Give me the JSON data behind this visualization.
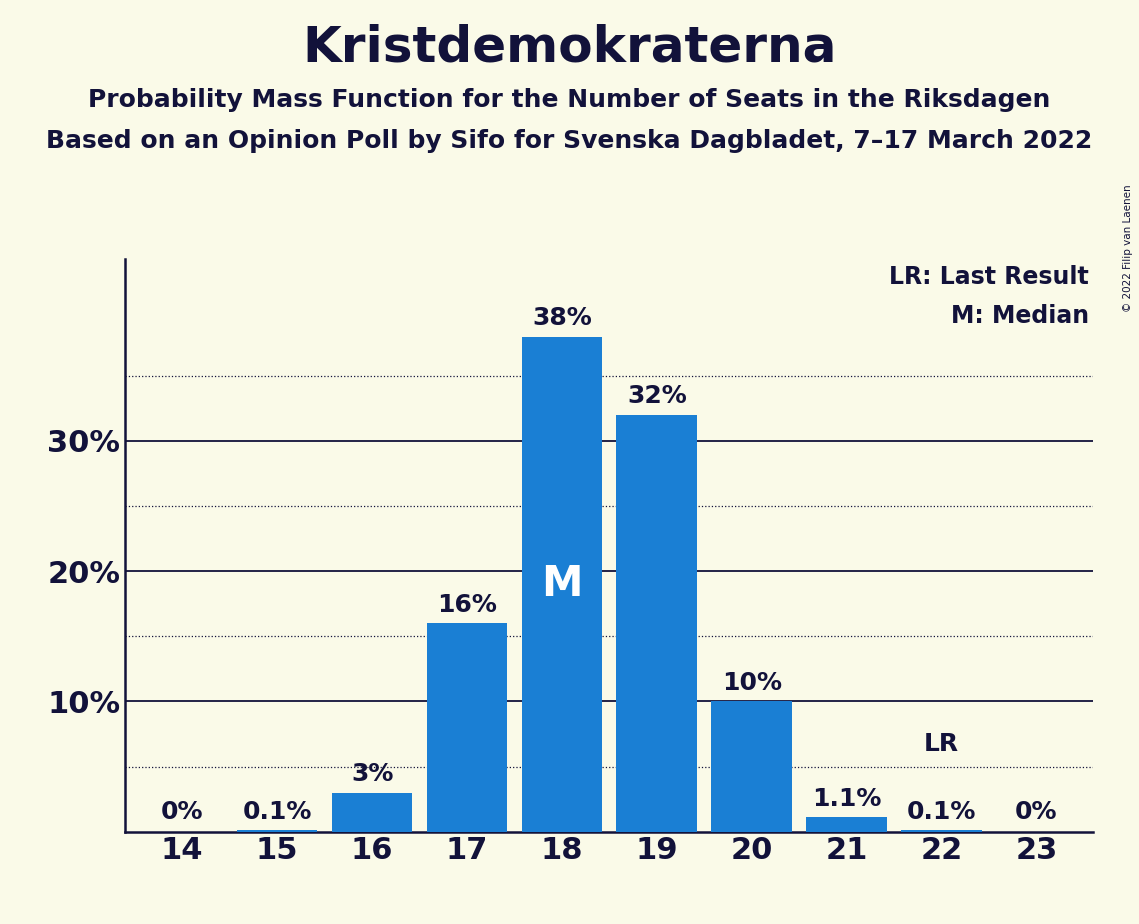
{
  "title": "Kristdemokraterna",
  "subtitle1": "Probability Mass Function for the Number of Seats in the Riksdagen",
  "subtitle2": "Based on an Opinion Poll by Sifo for Svenska Dagbladet, 7–17 March 2022",
  "copyright": "© 2022 Filip van Laenen",
  "seats": [
    14,
    15,
    16,
    17,
    18,
    19,
    20,
    21,
    22,
    23
  ],
  "values": [
    0.0,
    0.1,
    3.0,
    16.0,
    38.0,
    32.0,
    10.0,
    1.1,
    0.1,
    0.0
  ],
  "bar_labels": [
    "0%",
    "0.1%",
    "3%",
    "16%",
    "38%",
    "32%",
    "10%",
    "1.1%",
    "0.1%",
    "0%"
  ],
  "bar_color": "#1a7fd4",
  "background_color": "#fafae8",
  "median_seat": 18,
  "median_label": "M",
  "lr_seat": 22,
  "lr_label": "LR",
  "legend_lr": "LR: Last Result",
  "legend_m": "M: Median",
  "ylim": [
    0,
    44
  ],
  "ytick_vals": [
    10,
    20,
    30
  ],
  "ytick_labels": [
    "10%",
    "20%",
    "30%"
  ],
  "dotted_yticks": [
    5,
    15,
    25,
    35
  ],
  "title_fontsize": 36,
  "subtitle_fontsize": 18,
  "bar_label_fontsize": 18,
  "axis_label_fontsize": 22,
  "legend_fontsize": 17,
  "median_fontsize": 30
}
